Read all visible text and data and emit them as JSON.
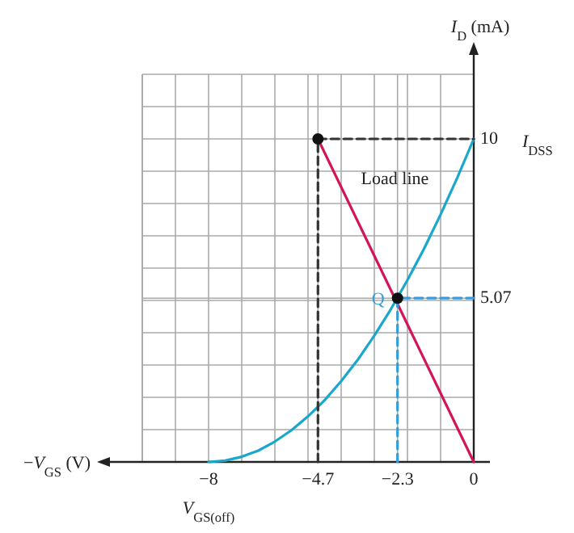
{
  "chart_data": {
    "type": "line",
    "xlabel": "−V$_{GS}$ (V)",
    "ylabel": "I$_{D}$ (mA)",
    "xlim": [
      -10,
      0
    ],
    "ylim": [
      0,
      12
    ],
    "xticks": [
      {
        "value": -10,
        "label": null
      },
      {
        "value": -9,
        "label": null
      },
      {
        "value": -8,
        "label": "−8"
      },
      {
        "value": -7,
        "label": null
      },
      {
        "value": -6,
        "label": null
      },
      {
        "value": -5,
        "label": null
      },
      {
        "value": -4.7,
        "label": "−4.7"
      },
      {
        "value": -4,
        "label": null
      },
      {
        "value": -3,
        "label": null
      },
      {
        "value": -2.3,
        "label": "−2.3"
      },
      {
        "value": -2,
        "label": null
      },
      {
        "value": -1,
        "label": null
      },
      {
        "value": 0,
        "label": "0"
      }
    ],
    "yticks": [
      {
        "value": 1,
        "label": null
      },
      {
        "value": 2,
        "label": null
      },
      {
        "value": 3,
        "label": null
      },
      {
        "value": 4,
        "label": null
      },
      {
        "value": 5,
        "label": null
      },
      {
        "value": 5.07,
        "label": "5.07"
      },
      {
        "value": 6,
        "label": null
      },
      {
        "value": 7,
        "label": null
      },
      {
        "value": 8,
        "label": null
      },
      {
        "value": 9,
        "label": null
      },
      {
        "value": 10,
        "label": "10"
      },
      {
        "value": 11,
        "label": null
      },
      {
        "value": 12,
        "label": null
      }
    ],
    "grid": true,
    "series": [
      {
        "color": "#1aa7cc",
        "x": [
          -8,
          -7.5,
          -7,
          -6.5,
          -6,
          -5.5,
          -5,
          -4.5,
          -4,
          -3.5,
          -3,
          -2.5,
          -2,
          -1.5,
          -1,
          -0.5,
          0
        ],
        "values": [
          0,
          0.04,
          0.16,
          0.35,
          0.63,
          0.98,
          1.41,
          1.91,
          2.5,
          3.16,
          3.91,
          4.73,
          5.63,
          6.6,
          7.66,
          8.79,
          10
        ],
        "line_style": "solid"
      },
      {
        "color": "#d4145a",
        "x": [
          -4.7,
          0
        ],
        "values": [
          10,
          0
        ],
        "line_style": "solid"
      },
      {
        "color": "#333333",
        "x": [
          -4.7,
          -4.7,
          0
        ],
        "values": [
          0,
          10,
          10
        ],
        "line_style": "dashed"
      },
      {
        "color": "#3a9ad9",
        "x": [
          -2.3,
          -2.3,
          0
        ],
        "values": [
          0,
          5.07,
          5.07
        ],
        "line_style": "dashed"
      },
      {
        "type": "scatter",
        "color": "#111111",
        "x": [
          -4.7,
          -2.3
        ],
        "values": [
          10,
          5.07
        ],
        "marker": "circle"
      }
    ],
    "annotations": [
      {
        "text": "I$_{DSS}$",
        "x": 0,
        "y": 10
      },
      "Load line",
      {
        "text": "Q",
        "x": -2.3,
        "y": 5.07
      },
      "V$_{GS(off)}$"
    ]
  }
}
